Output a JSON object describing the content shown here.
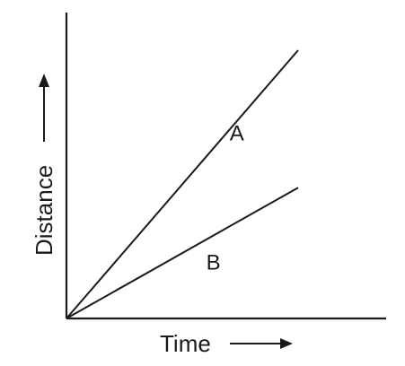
{
  "chart_data": {
    "type": "line",
    "xlabel": "Time",
    "ylabel": "Distance",
    "axes_numbered": false,
    "axis_arrows": true,
    "origin_shared": true,
    "series": [
      {
        "name": "A",
        "x": [
          0,
          1
        ],
        "y": [
          0,
          1.21
        ]
      },
      {
        "name": "B",
        "x": [
          0,
          1
        ],
        "y": [
          0,
          0.59
        ]
      }
    ],
    "xlim": [
      0,
      1.38
    ],
    "ylim": [
      0,
      1.38
    ],
    "grid": false,
    "legend": "none"
  }
}
